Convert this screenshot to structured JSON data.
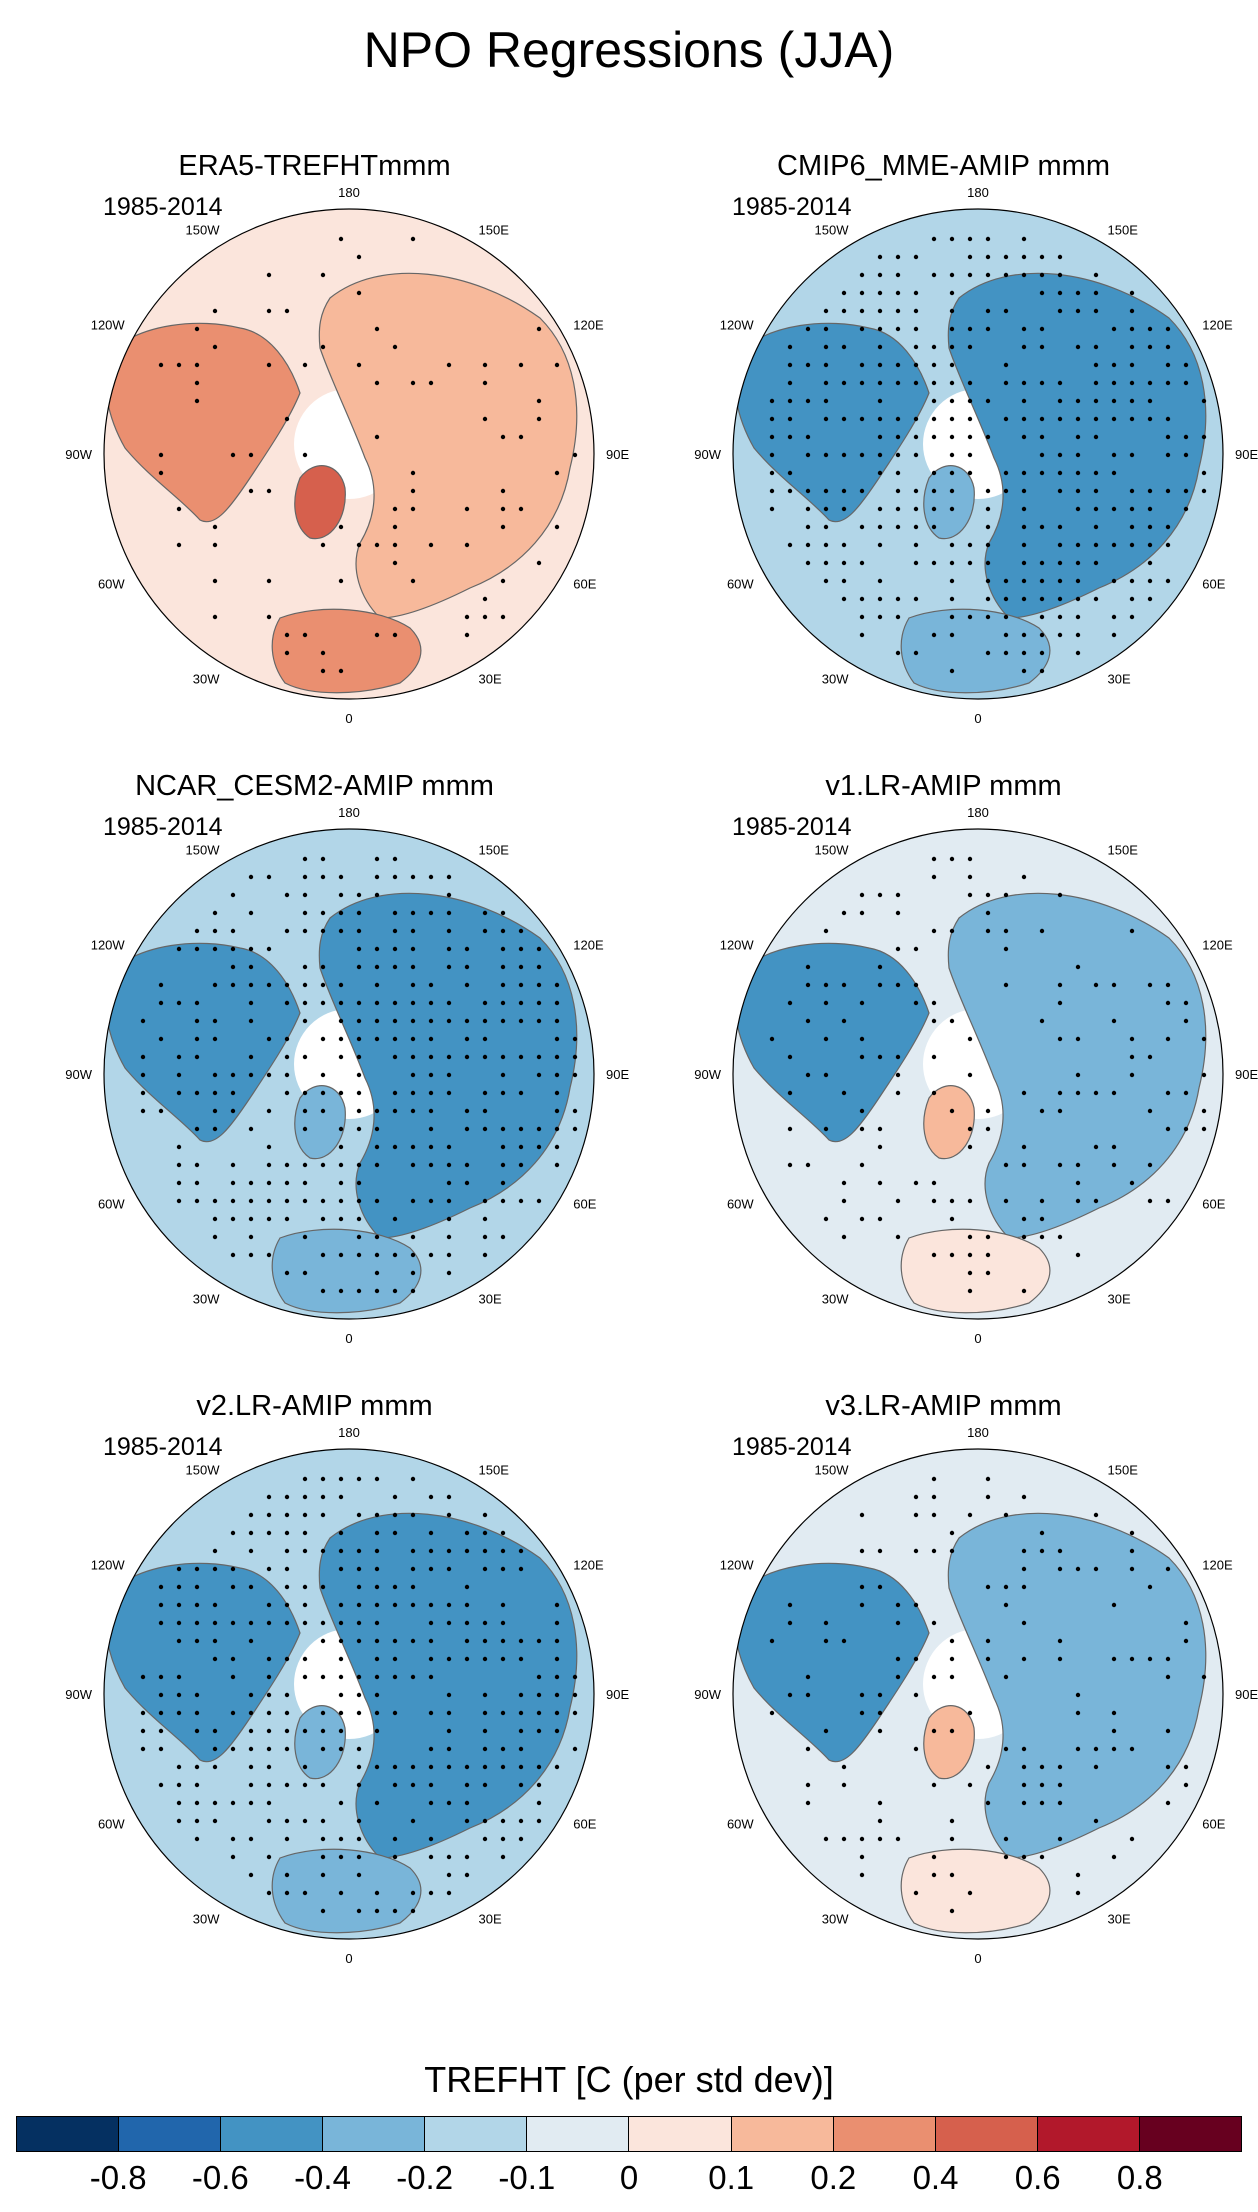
{
  "figure": {
    "title": "NPO Regressions (JJA)"
  },
  "longitude_labels": [
    "180",
    "150E",
    "120E",
    "90E",
    "60E",
    "30E",
    "0",
    "30W",
    "60W",
    "90W",
    "120W",
    "150W"
  ],
  "panels": [
    {
      "title": "ERA5-TREFHTmmm",
      "period": "1985-2014",
      "pattern": "warm"
    },
    {
      "title": "CMIP6_MME-AMIP  mmm",
      "period": "1985-2014",
      "pattern": "cold"
    },
    {
      "title": "NCAR_CESM2-AMIP  mmm",
      "period": "1985-2014",
      "pattern": "cold"
    },
    {
      "title": "v1.LR-AMIP  mmm",
      "period": "1985-2014",
      "pattern": "mixed"
    },
    {
      "title": "v2.LR-AMIP  mmm",
      "period": "1985-2014",
      "pattern": "cold"
    },
    {
      "title": "v3.LR-AMIP  mmm",
      "period": "1985-2014",
      "pattern": "mixed"
    }
  ],
  "colorbar": {
    "title": "TREFHT [C (per std dev)]",
    "ticks": [
      "-0.8",
      "-0.6",
      "-0.4",
      "-0.2",
      "-0.1",
      "0",
      "0.1",
      "0.2",
      "0.4",
      "0.6",
      "0.8"
    ],
    "colors": [
      "#053061",
      "#2166ac",
      "#4393c3",
      "#79b5d9",
      "#b2d6e8",
      "#e1ebf2",
      "#fbe5dc",
      "#f7b99b",
      "#ea8f70",
      "#d6604d",
      "#b2182b",
      "#67001f"
    ]
  }
}
